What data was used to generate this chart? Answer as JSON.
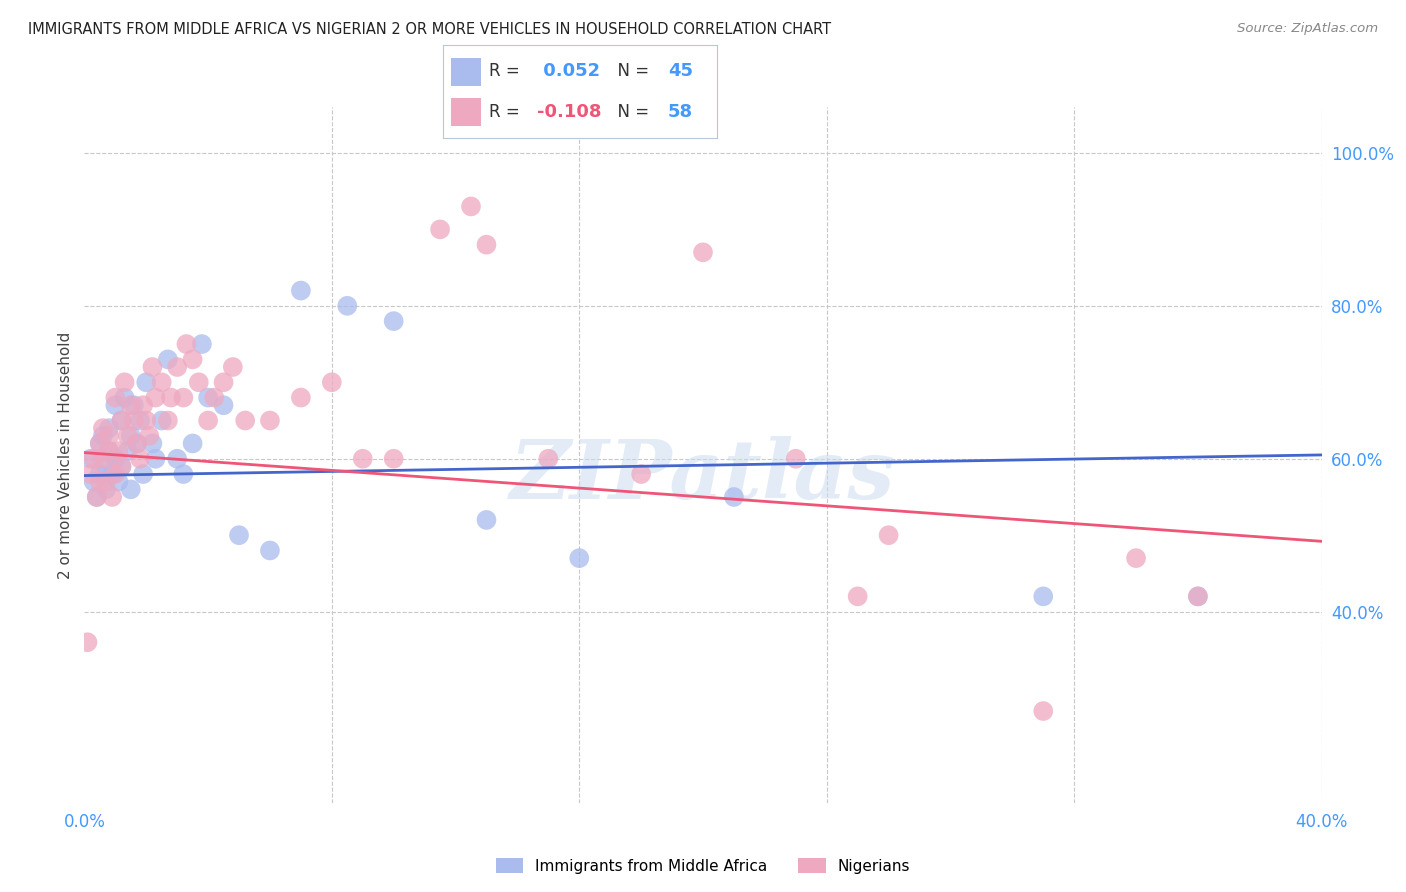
{
  "title": "IMMIGRANTS FROM MIDDLE AFRICA VS NIGERIAN 2 OR MORE VEHICLES IN HOUSEHOLD CORRELATION CHART",
  "source": "Source: ZipAtlas.com",
  "ylabel": "2 or more Vehicles in Household",
  "xlim": [
    0.0,
    0.4
  ],
  "ylim": [
    0.15,
    1.06
  ],
  "yticks": [
    0.4,
    0.6,
    0.8,
    1.0
  ],
  "ytick_labels": [
    "40.0%",
    "60.0%",
    "80.0%",
    "100.0%"
  ],
  "xticks": [
    0.0,
    0.08,
    0.16,
    0.24,
    0.32,
    0.4
  ],
  "xtick_labels": [
    "0.0%",
    "",
    "",
    "",
    "",
    "40.0%"
  ],
  "blue_R": 0.052,
  "blue_N": 45,
  "pink_R": -0.108,
  "pink_N": 58,
  "blue_dot_color": "#aabbee",
  "pink_dot_color": "#eea8c0",
  "blue_line_color": "#4466cc",
  "pink_line_color": "#ee5577",
  "axis_label_color": "#4499ff",
  "title_color": "#222222",
  "watermark": "ZIPatlas",
  "watermark_color": "#ccddef",
  "blue_trend_y0": 0.578,
  "blue_trend_y1": 0.605,
  "pink_trend_y0": 0.608,
  "pink_trend_y1": 0.492,
  "blue_scatter_x": [
    0.002,
    0.003,
    0.004,
    0.005,
    0.005,
    0.006,
    0.007,
    0.007,
    0.008,
    0.008,
    0.009,
    0.01,
    0.01,
    0.011,
    0.012,
    0.012,
    0.013,
    0.014,
    0.015,
    0.015,
    0.016,
    0.017,
    0.018,
    0.019,
    0.02,
    0.022,
    0.023,
    0.025,
    0.027,
    0.03,
    0.032,
    0.035,
    0.038,
    0.04,
    0.045,
    0.05,
    0.06,
    0.07,
    0.085,
    0.1,
    0.13,
    0.16,
    0.21,
    0.31,
    0.36
  ],
  "blue_scatter_y": [
    0.6,
    0.57,
    0.55,
    0.62,
    0.58,
    0.63,
    0.59,
    0.56,
    0.64,
    0.61,
    0.58,
    0.67,
    0.6,
    0.57,
    0.65,
    0.59,
    0.68,
    0.61,
    0.63,
    0.56,
    0.67,
    0.62,
    0.65,
    0.58,
    0.7,
    0.62,
    0.6,
    0.65,
    0.73,
    0.6,
    0.58,
    0.62,
    0.75,
    0.68,
    0.67,
    0.5,
    0.48,
    0.82,
    0.8,
    0.78,
    0.52,
    0.47,
    0.55,
    0.42,
    0.42
  ],
  "pink_scatter_x": [
    0.001,
    0.002,
    0.003,
    0.004,
    0.005,
    0.005,
    0.006,
    0.006,
    0.007,
    0.008,
    0.008,
    0.009,
    0.01,
    0.01,
    0.011,
    0.012,
    0.012,
    0.013,
    0.014,
    0.015,
    0.016,
    0.017,
    0.018,
    0.019,
    0.02,
    0.021,
    0.022,
    0.023,
    0.025,
    0.027,
    0.028,
    0.03,
    0.032,
    0.033,
    0.035,
    0.037,
    0.04,
    0.042,
    0.045,
    0.048,
    0.052,
    0.06,
    0.07,
    0.08,
    0.09,
    0.1,
    0.115,
    0.125,
    0.13,
    0.15,
    0.18,
    0.2,
    0.23,
    0.26,
    0.31,
    0.34,
    0.36,
    0.25
  ],
  "pink_scatter_y": [
    0.36,
    0.58,
    0.6,
    0.55,
    0.62,
    0.57,
    0.64,
    0.6,
    0.57,
    0.63,
    0.61,
    0.55,
    0.68,
    0.58,
    0.61,
    0.65,
    0.59,
    0.7,
    0.63,
    0.67,
    0.65,
    0.62,
    0.6,
    0.67,
    0.65,
    0.63,
    0.72,
    0.68,
    0.7,
    0.65,
    0.68,
    0.72,
    0.68,
    0.75,
    0.73,
    0.7,
    0.65,
    0.68,
    0.7,
    0.72,
    0.65,
    0.65,
    0.68,
    0.7,
    0.6,
    0.6,
    0.9,
    0.93,
    0.88,
    0.6,
    0.58,
    0.87,
    0.6,
    0.5,
    0.27,
    0.47,
    0.42,
    0.42
  ]
}
